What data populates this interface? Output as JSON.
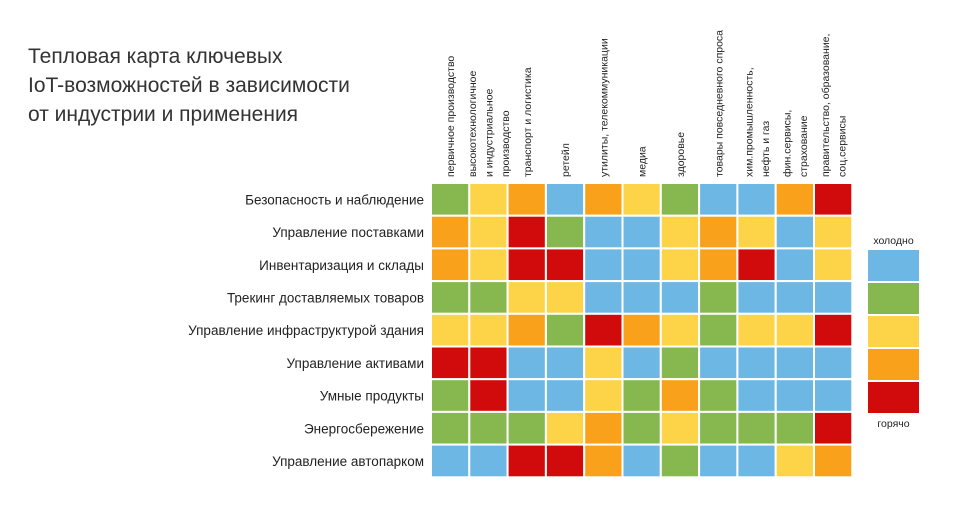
{
  "title_lines": [
    "Тепловая карта ключевых",
    "IoT-возможностей в зависимости",
    "от индустрии и применения"
  ],
  "colors": {
    "1": "#6db7e5",
    "2": "#86b84f",
    "3": "#fdd448",
    "4": "#f9a11b",
    "5": "#d10b0b"
  },
  "chart_data": {
    "type": "heatmap",
    "title": "Тепловая карта ключевых IoT-возможностей в зависимости от индустрии и применения",
    "scale": {
      "levels": [
        1,
        2,
        3,
        4,
        5
      ],
      "low_label": "холодно",
      "high_label": "горячо"
    },
    "columns": [
      [
        "первичное производство"
      ],
      [
        "высокотехнологичное",
        "и индустриальное",
        "производство"
      ],
      [
        "транспорт и логистика"
      ],
      [
        "ретейл"
      ],
      [
        "утилиты, телекоммуникации"
      ],
      [
        "медиа"
      ],
      [
        "здоровье"
      ],
      [
        "товары повседневного спроса"
      ],
      [
        "хим.промышленность,",
        "нефть и газ"
      ],
      [
        "фин.сервисы,",
        "страхование"
      ],
      [
        "правительство, образование,",
        "соц.сервисы"
      ]
    ],
    "rows": [
      "Безопасность и наблюдение",
      "Управление поставками",
      "Инвентаризация и склады",
      "Трекинг доставляемых товаров",
      "Управление инфраструктурой здания",
      "Управление активами",
      "Умные продукты",
      "Энергосбережение",
      "Управление автопарком"
    ],
    "values": [
      [
        2,
        3,
        4,
        1,
        4,
        3,
        2,
        1,
        1,
        4,
        5
      ],
      [
        4,
        3,
        5,
        2,
        1,
        1,
        3,
        4,
        3,
        1,
        3
      ],
      [
        4,
        3,
        5,
        5,
        1,
        1,
        3,
        4,
        5,
        1,
        3
      ],
      [
        2,
        2,
        3,
        3,
        1,
        1,
        1,
        2,
        1,
        1,
        1
      ],
      [
        3,
        3,
        4,
        2,
        5,
        4,
        3,
        2,
        3,
        3,
        5
      ],
      [
        5,
        5,
        1,
        1,
        3,
        1,
        2,
        1,
        1,
        1,
        1
      ],
      [
        2,
        5,
        1,
        1,
        3,
        2,
        4,
        2,
        1,
        1,
        1
      ],
      [
        2,
        2,
        2,
        3,
        4,
        2,
        3,
        2,
        2,
        2,
        5
      ],
      [
        1,
        1,
        5,
        5,
        4,
        1,
        2,
        1,
        1,
        3,
        4
      ]
    ]
  }
}
